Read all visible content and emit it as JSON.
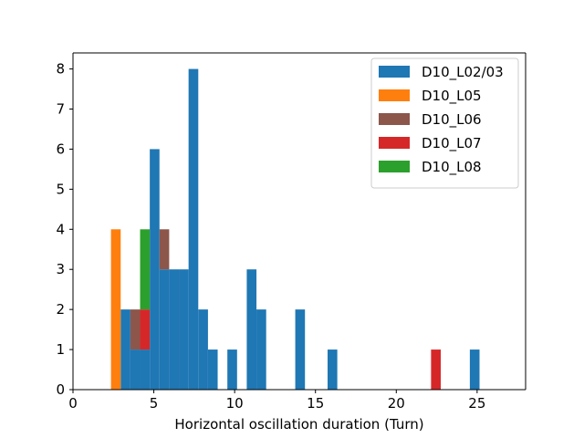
{
  "chart_data": {
    "type": "bar",
    "stacked": true,
    "title": "",
    "xlabel": "Horizontal oscillation duration (Turn)",
    "ylabel": "",
    "xlim": [
      0,
      28
    ],
    "ylim": [
      0,
      8.4
    ],
    "xticks": [
      0,
      5,
      10,
      15,
      20,
      25
    ],
    "yticks": [
      0,
      1,
      2,
      3,
      4,
      5,
      6,
      7,
      8
    ],
    "legend_position": "top-right",
    "grid": false,
    "series": [
      {
        "name": "D10_L02/03",
        "color": "#1f77b4",
        "bins": [
          {
            "x0": 2.95,
            "x1": 3.55,
            "value": 2
          },
          {
            "x0": 3.55,
            "x1": 4.15,
            "value": 1
          },
          {
            "x0": 4.15,
            "x1": 4.75,
            "value": 1
          },
          {
            "x0": 4.75,
            "x1": 5.35,
            "value": 6
          },
          {
            "x0": 5.35,
            "x1": 5.95,
            "value": 3
          },
          {
            "x0": 5.95,
            "x1": 6.55,
            "value": 3
          },
          {
            "x0": 6.55,
            "x1": 7.15,
            "value": 3
          },
          {
            "x0": 7.15,
            "x1": 7.75,
            "value": 8
          },
          {
            "x0": 7.75,
            "x1": 8.35,
            "value": 2
          },
          {
            "x0": 8.35,
            "x1": 8.95,
            "value": 1
          },
          {
            "x0": 9.55,
            "x1": 10.15,
            "value": 1
          },
          {
            "x0": 10.75,
            "x1": 11.35,
            "value": 3
          },
          {
            "x0": 11.35,
            "x1": 11.95,
            "value": 2
          },
          {
            "x0": 13.75,
            "x1": 14.35,
            "value": 2
          },
          {
            "x0": 15.75,
            "x1": 16.35,
            "value": 1
          },
          {
            "x0": 24.55,
            "x1": 25.15,
            "value": 1
          }
        ]
      },
      {
        "name": "D10_L05",
        "color": "#ff7f0e",
        "bins": [
          {
            "x0": 2.35,
            "x1": 2.95,
            "value": 4
          }
        ]
      },
      {
        "name": "D10_L06",
        "color": "#8c564b",
        "bins": [
          {
            "x0": 3.55,
            "x1": 4.15,
            "value": 1
          },
          {
            "x0": 5.35,
            "x1": 5.95,
            "value": 1
          }
        ]
      },
      {
        "name": "D10_L07",
        "color": "#d62728",
        "bins": [
          {
            "x0": 4.15,
            "x1": 4.75,
            "value": 1
          },
          {
            "x0": 22.15,
            "x1": 22.75,
            "value": 1
          }
        ]
      },
      {
        "name": "D10_L08",
        "color": "#2ca02c",
        "bins": [
          {
            "x0": 4.15,
            "x1": 4.75,
            "value": 2
          }
        ]
      }
    ]
  }
}
